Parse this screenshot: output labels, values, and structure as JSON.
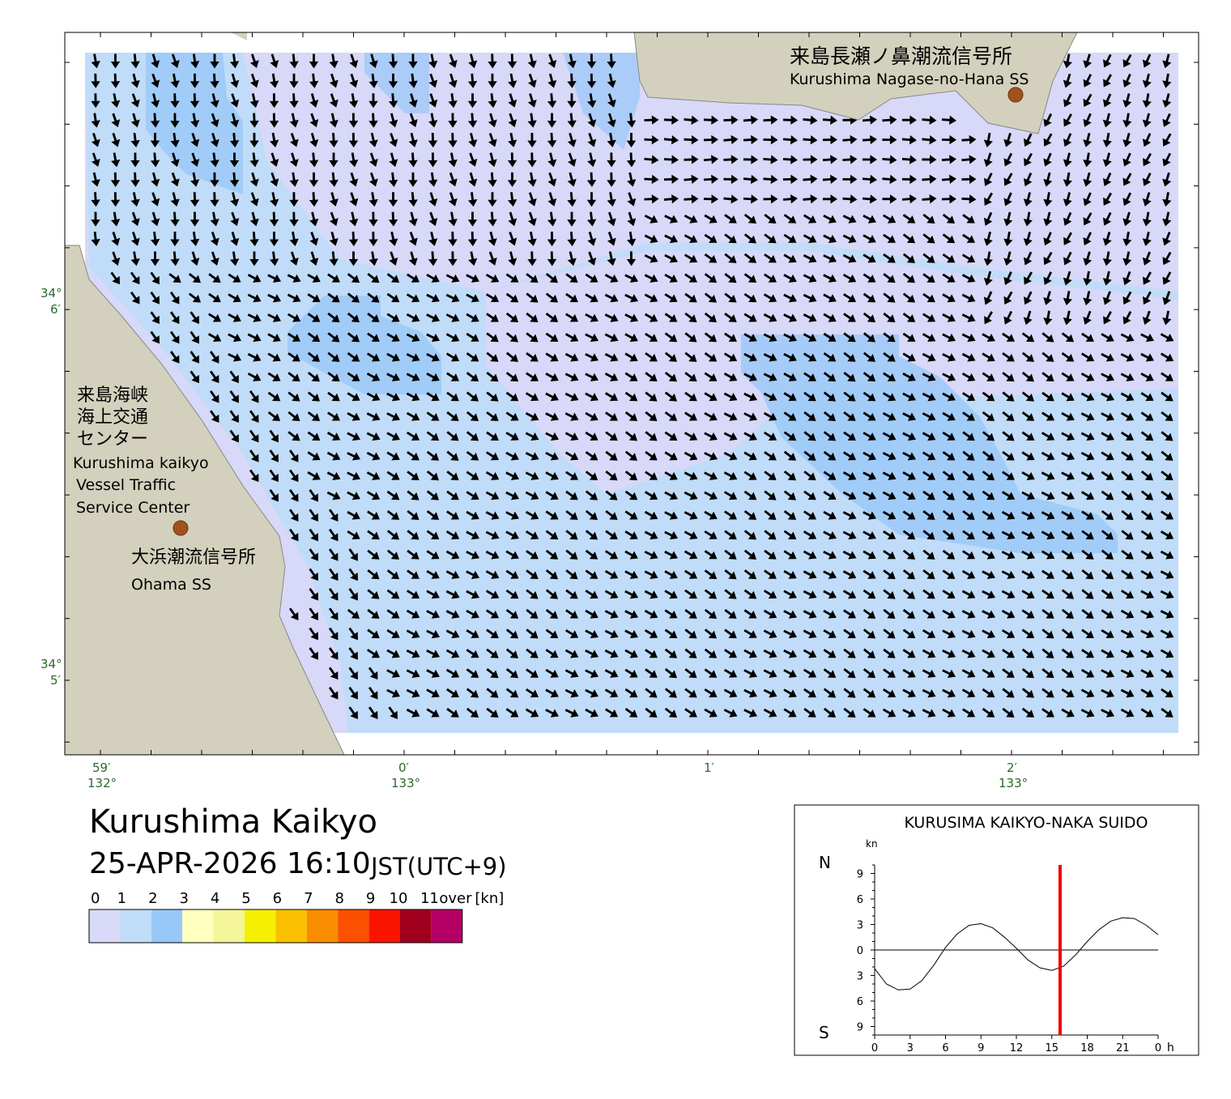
{
  "header": {
    "title": "Kurushima Kaikyo",
    "datetime": "25-APR-2026 16:10",
    "timezone": "JST(UTC+9)"
  },
  "map": {
    "stations": [
      {
        "name_ja": "来島長瀬ノ鼻潮流信号所",
        "name_en": "Kurushima Nagase-no-Hana SS"
      },
      {
        "name_ja": "大浜潮流信号所",
        "name_en": "Ohama SS"
      }
    ],
    "center": {
      "name_ja": [
        "来島海峡",
        "海上交通",
        "センター"
      ],
      "name_en": [
        "Kurushima kaikyo",
        "Vessel Traffic",
        "Service Center"
      ]
    },
    "lat_labels": [
      {
        "deg": "34°",
        "min": "6′"
      },
      {
        "deg": "34°",
        "min": "5′"
      }
    ],
    "lon_labels": [
      {
        "min": "59′",
        "deg": "132°"
      },
      {
        "min": "0′",
        "deg": "133°"
      },
      {
        "min": "1′"
      },
      {
        "min": "2′",
        "deg": "133°"
      }
    ]
  },
  "legend": {
    "labels": [
      "0",
      "1",
      "2",
      "3",
      "4",
      "5",
      "6",
      "7",
      "8",
      "9",
      "10",
      "11"
    ],
    "over": "over",
    "unit": "[kn]",
    "colors": [
      "#d8d8f8",
      "#c0dcf8",
      "#98c8f8",
      "#ffffc0",
      "#f5f59a",
      "#f5f000",
      "#fac000",
      "#fa8c00",
      "#fa5000",
      "#fa1400",
      "#a0001e",
      "#b40064"
    ]
  },
  "chart_data": {
    "type": "line",
    "title": "KURUSIMA KAIKYO-NAKA SUIDO",
    "y_unit": "kn",
    "north": "N",
    "south": "S",
    "x_unit": "h",
    "x": [
      0,
      1,
      2,
      3,
      4,
      5,
      6,
      7,
      8,
      9,
      10,
      11,
      12,
      13,
      14,
      15,
      16,
      17,
      18,
      19,
      20,
      21,
      22,
      23,
      24
    ],
    "values": [
      -2.2,
      -4.0,
      -4.7,
      -4.6,
      -3.6,
      -1.8,
      0.3,
      1.9,
      2.9,
      3.1,
      2.6,
      1.5,
      0.2,
      -1.2,
      -2.1,
      -2.4,
      -1.9,
      -0.6,
      1.0,
      2.4,
      3.4,
      3.8,
      3.7,
      2.9,
      1.8
    ],
    "color": "#000000",
    "xlim": [
      0,
      24
    ],
    "xticks": [
      0,
      3,
      6,
      9,
      12,
      15,
      18,
      21,
      {
        "value": 24,
        "label": "0"
      }
    ],
    "ylim": [
      -10,
      10
    ],
    "yticks": [
      {
        "value": -9,
        "label": "9"
      },
      {
        "value": -6,
        "label": "6"
      },
      {
        "value": -3,
        "label": "3"
      },
      0,
      3,
      6,
      9
    ],
    "now": 15.7,
    "now_color": "#ee0000"
  }
}
